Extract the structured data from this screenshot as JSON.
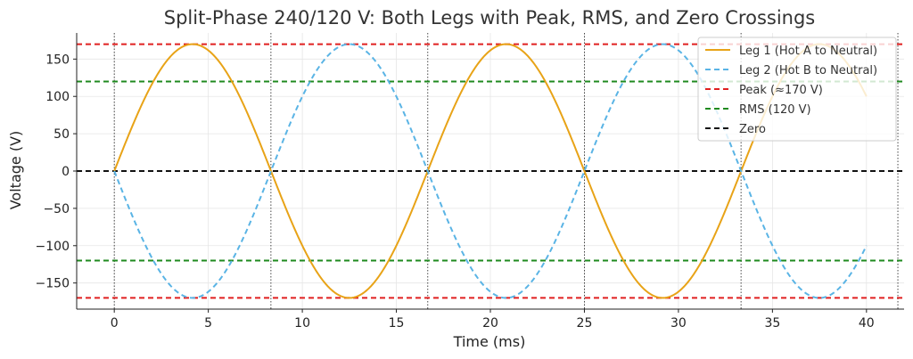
{
  "chart_data": {
    "type": "line",
    "title": "Split-Phase 240/120 V: Both Legs with Peak, RMS, and Zero Crossings",
    "xlabel": "Time (ms)",
    "ylabel": "Voltage (V)",
    "xlim": [
      -2,
      42
    ],
    "ylim": [
      -185,
      185
    ],
    "x_ticks": [
      0,
      5,
      10,
      15,
      20,
      25,
      30,
      35,
      40
    ],
    "y_ticks": [
      -150,
      -100,
      -50,
      0,
      50,
      100,
      150
    ],
    "grid": true,
    "legend_position": "top-right",
    "series": [
      {
        "name": "Leg 1 (Hot A to Neutral)",
        "kind": "sine",
        "amplitude": 170,
        "frequency_hz": 60,
        "phase_deg": 0,
        "x_range": [
          0,
          40
        ],
        "color": "#e8a317",
        "dash": "solid"
      },
      {
        "name": "Leg 2 (Hot B to Neutral)",
        "kind": "sine",
        "amplitude": 170,
        "frequency_hz": 60,
        "phase_deg": 180,
        "x_range": [
          0,
          40
        ],
        "color": "#5ab4e5",
        "dash": "dashed"
      }
    ],
    "reference_lines": [
      {
        "name": "Peak (≈170 V)",
        "values": [
          170,
          -170
        ],
        "color": "#e02020",
        "dash": "dashed"
      },
      {
        "name": "RMS (120 V)",
        "values": [
          120,
          -120
        ],
        "color": "#1f8a1f",
        "dash": "dashed"
      },
      {
        "name": "Zero",
        "values": [
          0
        ],
        "color": "#111111",
        "dash": "dashed"
      }
    ],
    "zero_crossings_ms": [
      0,
      8.33,
      16.67,
      25,
      33.33,
      41.67
    ]
  }
}
